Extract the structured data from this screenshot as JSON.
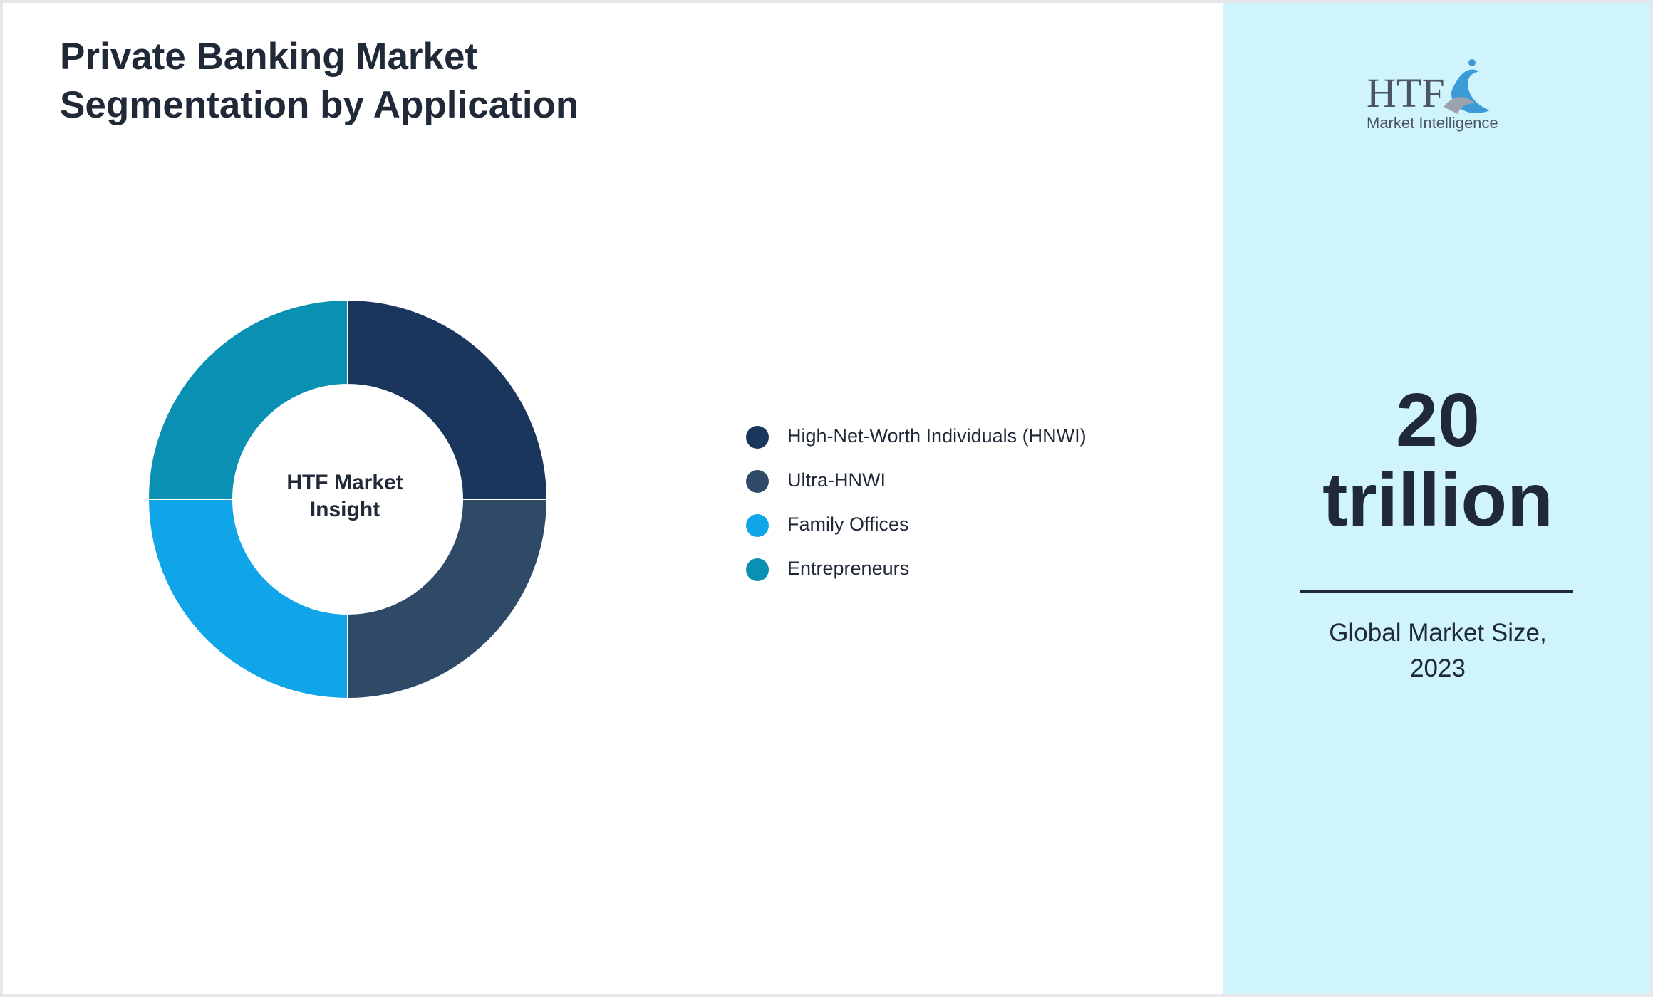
{
  "chart_data": {
    "type": "pie",
    "title": "Private Banking Market Segmentation by Application",
    "center_label": "HTF Market Insight",
    "categories": [
      "High-Net-Worth Individuals (HNWI)",
      "Ultra-HNWI",
      "Family Offices",
      "Entrepreneurs"
    ],
    "values": [
      25,
      25,
      25,
      25
    ],
    "colors": [
      "#1b365d",
      "#2e4a66",
      "#10a5e8",
      "#0a90b3"
    ],
    "legend": "right"
  },
  "stat": {
    "value": "20 trillion",
    "label": "Global Market Size, 2023"
  },
  "logo": {
    "name": "HTF",
    "tagline": "Market Intelligence"
  }
}
